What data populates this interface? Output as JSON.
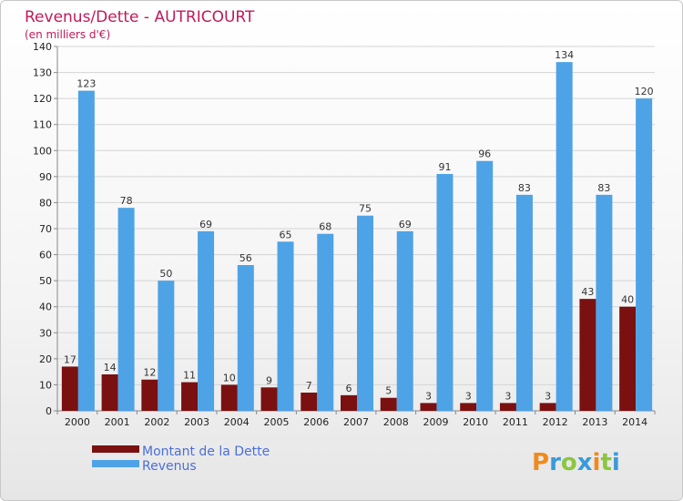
{
  "chart_data": {
    "type": "bar",
    "title": "Revenus/Dette - AUTRICOURT",
    "subtitle": "(en milliers d'€)",
    "categories": [
      "2000",
      "2001",
      "2002",
      "2003",
      "2004",
      "2005",
      "2006",
      "2007",
      "2008",
      "2009",
      "2010",
      "2011",
      "2012",
      "2013",
      "2014"
    ],
    "series": [
      {
        "name": "Montant de la Dette",
        "color": "#7a1010",
        "values": [
          17,
          14,
          12,
          11,
          10,
          9,
          7,
          6,
          5,
          3,
          3,
          3,
          3,
          43,
          40
        ]
      },
      {
        "name": "Revenus",
        "color": "#4da3e6",
        "values": [
          123,
          78,
          50,
          69,
          56,
          65,
          68,
          75,
          69,
          91,
          96,
          83,
          134,
          83,
          120
        ]
      }
    ],
    "ylim": [
      0,
      140
    ],
    "yticks": [
      0,
      10,
      20,
      30,
      40,
      50,
      60,
      70,
      80,
      90,
      100,
      110,
      120,
      130,
      140
    ],
    "grid": true,
    "legend": "bottom-left"
  },
  "logo": {
    "text": "Proxiti"
  }
}
